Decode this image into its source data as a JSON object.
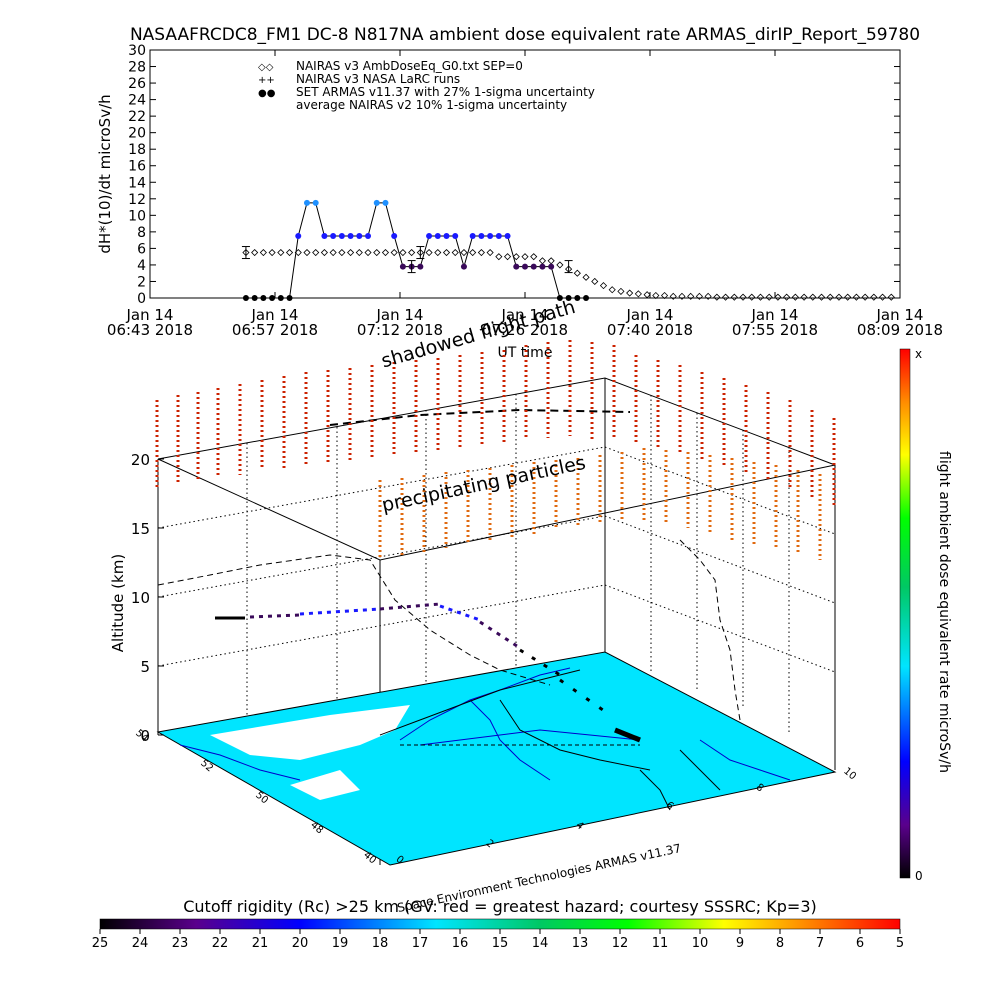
{
  "title": "NASAAFRCDC8_FM1 DC-8    N817NA ambient dose equivalent rate ARMAS_dirIP_Report_59780",
  "colors": {
    "axis": "#000000",
    "series_diamond": "#000000",
    "series_armas_dark": "#3a0a5a",
    "series_armas_mid": "#1a1aff",
    "series_armas_light": "#1e90ff",
    "map_land": "#00e5ff",
    "map_border": "#0000cc"
  },
  "chart_data": [
    {
      "type": "scatter",
      "ylabel": "dH*(10)/dt microSv/h",
      "xlabel": "UT time",
      "ylim": [
        0,
        30
      ],
      "yticks": [
        "0",
        "2",
        "4",
        "6",
        "8",
        "10",
        "12",
        "14",
        "16",
        "18",
        "20",
        "22",
        "24",
        "26",
        "28",
        "30"
      ],
      "xticks": [
        {
          "day": "Jan 14",
          "time": "06:43 2018"
        },
        {
          "day": "Jan 14",
          "time": "06:57 2018"
        },
        {
          "day": "Jan 14",
          "time": "07:12 2018"
        },
        {
          "day": "Jan 14",
          "time": "07:26 2018"
        },
        {
          "day": "Jan 14",
          "time": "07:40 2018"
        },
        {
          "day": "Jan 14",
          "time": "07:55 2018"
        },
        {
          "day": "Jan 14",
          "time": "08:09 2018"
        }
      ],
      "xlim_minutes": [
        0,
        86
      ],
      "legend": [
        {
          "symbol": "◇◇",
          "label": "NAIRAS v3 AmbDoseEq_G0.txt SEP=0"
        },
        {
          "symbol": "++",
          "label": "NAIRAS v3 NASA LaRC runs"
        },
        {
          "symbol": "●●",
          "label": "SET ARMAS v11.37 with 27% 1-sigma uncertainty"
        },
        {
          "symbol": "",
          "label": "average NAIRAS v2 10% 1-sigma uncertainty"
        }
      ],
      "series": [
        {
          "name": "NAIRAS v3 AmbDoseEq_G0.txt SEP=0",
          "marker": "diamond",
          "x_minutes": [
            11,
            12,
            13,
            14,
            15,
            16,
            17,
            18,
            19,
            20,
            21,
            22,
            23,
            24,
            25,
            26,
            27,
            28,
            29,
            30,
            31,
            32,
            33,
            34,
            35,
            36,
            37,
            38,
            39,
            40,
            41,
            42,
            43,
            44,
            45,
            46,
            47,
            48,
            49,
            50,
            51,
            52,
            53,
            54,
            55,
            56,
            57,
            58,
            59,
            60,
            61,
            62,
            63,
            64,
            65,
            66,
            67,
            68,
            69,
            70,
            71,
            72,
            73,
            74,
            75,
            76,
            77,
            78,
            79,
            80,
            81,
            82,
            83,
            84,
            85
          ],
          "values": [
            5.5,
            5.5,
            5.5,
            5.5,
            5.5,
            5.5,
            5.5,
            5.5,
            5.5,
            5.5,
            5.5,
            5.5,
            5.5,
            5.5,
            5.5,
            5.5,
            5.5,
            5.5,
            5.5,
            5.5,
            5.5,
            5.5,
            5.5,
            5.5,
            5.5,
            5.5,
            5.5,
            5.5,
            5.5,
            5.0,
            5.0,
            5.0,
            5.0,
            5.0,
            4.5,
            4.5,
            4.0,
            3.5,
            3.0,
            2.5,
            2.0,
            1.5,
            1.0,
            0.8,
            0.6,
            0.5,
            0.4,
            0.3,
            0.3,
            0.2,
            0.2,
            0.2,
            0.2,
            0.2,
            0.1,
            0.1,
            0.1,
            0.1,
            0.1,
            0.1,
            0.1,
            0.1,
            0.1,
            0.1,
            0.1,
            0.1,
            0.1,
            0.1,
            0.1,
            0.1,
            0.1,
            0.1,
            0.1,
            0.1,
            0.1
          ]
        },
        {
          "name": "SET ARMAS v11.37 with 27% 1-sigma uncertainty",
          "marker": "dot",
          "x_minutes": [
            11,
            12,
            13,
            14,
            15,
            16,
            17,
            18,
            19,
            20,
            21,
            22,
            23,
            24,
            25,
            26,
            27,
            28,
            29,
            30,
            31,
            32,
            33,
            34,
            35,
            36,
            37,
            38,
            39,
            40,
            41,
            42,
            43,
            44,
            45,
            46,
            47,
            48,
            49,
            50
          ],
          "values": [
            0,
            0,
            0,
            0,
            0,
            0,
            7.5,
            11.5,
            11.5,
            7.5,
            7.5,
            7.5,
            7.5,
            7.5,
            7.5,
            11.5,
            11.5,
            7.5,
            3.8,
            3.8,
            3.8,
            7.5,
            7.5,
            7.5,
            7.5,
            3.8,
            7.5,
            7.5,
            7.5,
            7.5,
            7.5,
            3.8,
            3.8,
            3.8,
            3.8,
            3.8,
            0,
            0,
            0,
            0
          ]
        }
      ],
      "error_bars": [
        {
          "x_minutes": 11,
          "value": 5.5
        },
        {
          "x_minutes": 30,
          "value": 3.8
        },
        {
          "x_minutes": 31,
          "value": 5.5
        },
        {
          "x_minutes": 48,
          "value": 3.8
        }
      ]
    },
    {
      "type": "scatter",
      "ylabel": "Altitude (km)",
      "zticks": [
        "0",
        "5",
        "10",
        "15",
        "20"
      ],
      "lat_ticks": [
        "40",
        "48",
        "50",
        "52",
        "54"
      ],
      "lon_ticks": [
        "0",
        "2",
        "4",
        "6",
        "8",
        "10"
      ],
      "annotations": [
        "shadowed flight path",
        "precipitating particles"
      ],
      "credit": "Space Environment Technologies ARMAS v11.37"
    }
  ],
  "colorbar_right": {
    "label": "flight ambient dose equivalent rate microSv/h",
    "top": "x",
    "bottom": "0"
  },
  "colorbar_bottom": {
    "title": "Cutoff rigidity (Rc) >25 km (GV: red = greatest hazard; courtesy SSSRC; Kp=3)",
    "ticks": [
      "25",
      "24",
      "23",
      "22",
      "21",
      "20",
      "19",
      "18",
      "17",
      "16",
      "15",
      "14",
      "13",
      "12",
      "11",
      "10",
      "9",
      "8",
      "7",
      "6",
      "5"
    ]
  }
}
